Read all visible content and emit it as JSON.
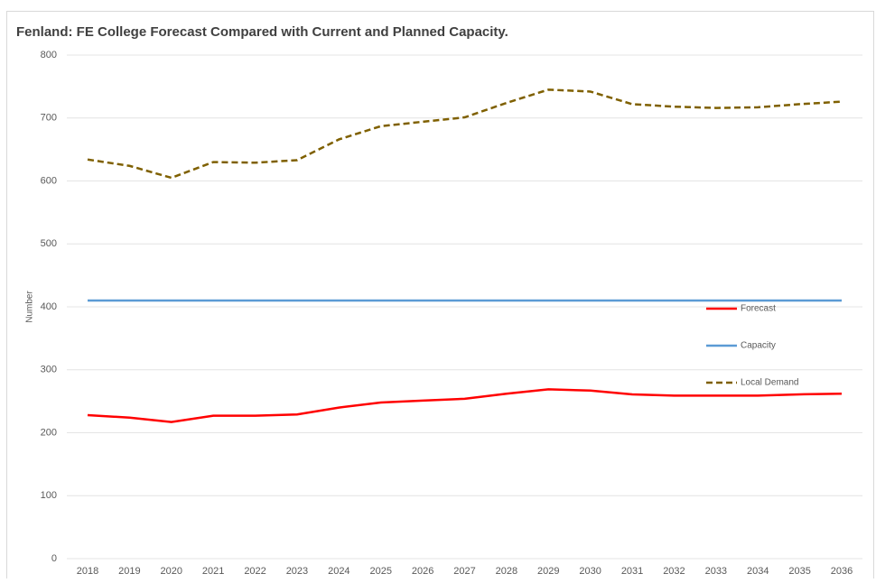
{
  "chart_data": {
    "type": "line",
    "title": "Fenland: FE College Forecast Compared with Current and Planned Capacity.",
    "y_label": "Number",
    "categories": [
      "2018",
      "2019",
      "2020",
      "2021",
      "2022",
      "2023",
      "2024",
      "2025",
      "2026",
      "2027",
      "2028",
      "2029",
      "2030",
      "2031",
      "2032",
      "2033",
      "2034",
      "2035",
      "2036"
    ],
    "series": [
      {
        "name": "Forecast",
        "color": "#ff0000",
        "dash": false,
        "values": [
          228,
          224,
          217,
          227,
          227,
          229,
          240,
          248,
          251,
          254,
          262,
          269,
          267,
          261,
          259,
          259,
          259,
          261,
          262
        ]
      },
      {
        "name": "Capacity",
        "color": "#5b9bd5",
        "dash": false,
        "values": [
          410,
          410,
          410,
          410,
          410,
          410,
          410,
          410,
          410,
          410,
          410,
          410,
          410,
          410,
          410,
          410,
          410,
          410,
          410
        ]
      },
      {
        "name": "Local Demand",
        "color": "#7f6000",
        "dash": true,
        "values": [
          634,
          624,
          605,
          630,
          629,
          633,
          666,
          687,
          694,
          701,
          724,
          745,
          742,
          722,
          718,
          716,
          717,
          722,
          726
        ]
      }
    ],
    "ylim": [
      0,
      800
    ],
    "yticks": [
      0,
      100,
      200,
      300,
      400,
      500,
      600,
      700,
      800
    ],
    "grid": true,
    "legend": "right"
  }
}
